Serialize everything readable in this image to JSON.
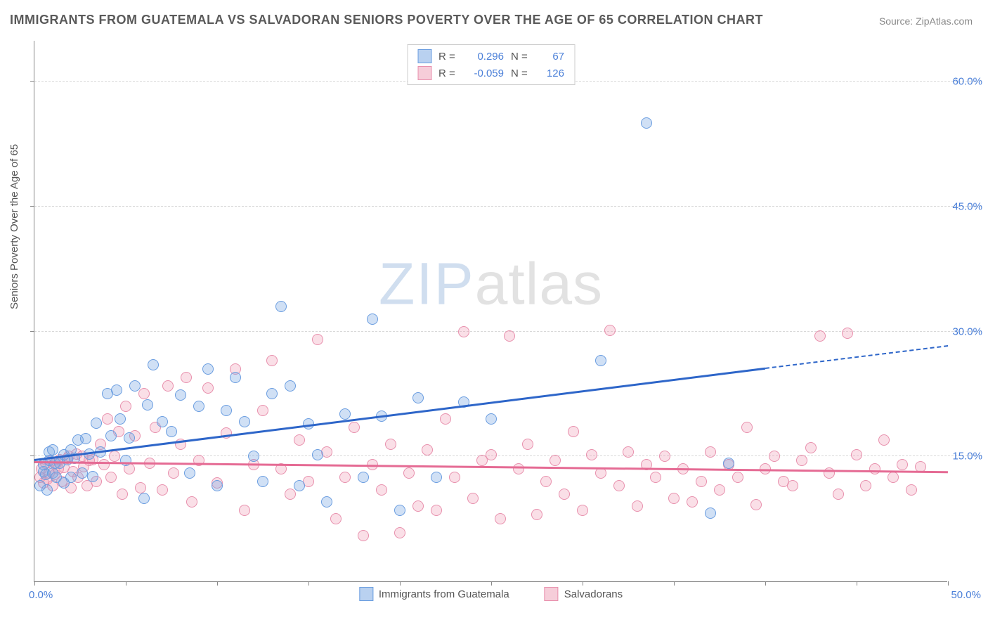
{
  "title": "IMMIGRANTS FROM GUATEMALA VS SALVADORAN SENIORS POVERTY OVER THE AGE OF 65 CORRELATION CHART",
  "source_label": "Source: ",
  "source_site": "ZipAtlas.com",
  "watermark_a": "ZIP",
  "watermark_b": "atlas",
  "chart": {
    "type": "scatter",
    "y_axis_title": "Seniors Poverty Over the Age of 65",
    "xlim": [
      0,
      50
    ],
    "ylim": [
      0,
      65
    ],
    "x_tick_labels": [
      "0.0%",
      "50.0%"
    ],
    "y_ticks": [
      15,
      30,
      45,
      60
    ],
    "y_tick_labels": [
      "15.0%",
      "30.0%",
      "45.0%",
      "60.0%"
    ],
    "x_minor_ticks": 10,
    "background_color": "#ffffff",
    "grid_color": "#d8d8d8",
    "axis_color": "#888888",
    "label_color": "#4a7fd8",
    "point_radius": 8,
    "series": [
      {
        "name": "Immigrants from Guatemala",
        "fill": "rgba(120,165,225,0.35)",
        "stroke": "#6a9de0",
        "swatch_fill": "#b9d1f0",
        "swatch_border": "#6a9de0",
        "trend_color": "#2e66c9",
        "R": "0.296",
        "N": "67",
        "trend": {
          "x1": 0,
          "y1": 14.5,
          "x2_solid": 40,
          "y2_solid": 25.5,
          "x2_dash": 50,
          "y2_dash": 28.2
        },
        "points": [
          [
            0.3,
            11.5
          ],
          [
            0.5,
            13.2
          ],
          [
            0.5,
            14
          ],
          [
            0.6,
            12.8
          ],
          [
            0.7,
            11
          ],
          [
            0.8,
            14.5
          ],
          [
            0.8,
            15.5
          ],
          [
            1,
            13
          ],
          [
            1,
            15.8
          ],
          [
            1.1,
            14.2
          ],
          [
            1.2,
            12.5
          ],
          [
            1.4,
            14.2
          ],
          [
            1.6,
            11.8
          ],
          [
            1.6,
            15.2
          ],
          [
            1.8,
            14.6
          ],
          [
            2.0,
            12.5
          ],
          [
            2.0,
            15.8
          ],
          [
            2.2,
            14.8
          ],
          [
            2.4,
            17
          ],
          [
            2.6,
            13
          ],
          [
            2.8,
            17.1
          ],
          [
            3.0,
            15.3
          ],
          [
            3.2,
            12.6
          ],
          [
            3.4,
            19
          ],
          [
            3.6,
            15.5
          ],
          [
            4,
            22.5
          ],
          [
            4.2,
            17.5
          ],
          [
            4.5,
            23
          ],
          [
            4.7,
            19.5
          ],
          [
            5,
            14.5
          ],
          [
            5.2,
            17.2
          ],
          [
            5.5,
            23.5
          ],
          [
            6,
            10
          ],
          [
            6.2,
            21.2
          ],
          [
            6.5,
            26
          ],
          [
            7,
            19.2
          ],
          [
            7.5,
            18
          ],
          [
            8,
            22.4
          ],
          [
            8.5,
            13
          ],
          [
            9,
            21
          ],
          [
            9.5,
            25.5
          ],
          [
            10,
            11.5
          ],
          [
            10.5,
            20.5
          ],
          [
            11,
            24.5
          ],
          [
            11.5,
            19.2
          ],
          [
            12,
            15
          ],
          [
            12.5,
            12
          ],
          [
            13,
            22.5
          ],
          [
            13.5,
            33
          ],
          [
            14,
            23.5
          ],
          [
            14.5,
            11.5
          ],
          [
            15,
            18.9
          ],
          [
            15.5,
            15.2
          ],
          [
            16,
            9.5
          ],
          [
            17,
            20.1
          ],
          [
            18,
            12.5
          ],
          [
            18.5,
            31.5
          ],
          [
            19,
            19.8
          ],
          [
            20,
            8.5
          ],
          [
            21,
            22
          ],
          [
            22,
            12.5
          ],
          [
            23.5,
            21.5
          ],
          [
            25,
            19.5
          ],
          [
            31,
            26.5
          ],
          [
            33.5,
            55
          ],
          [
            37,
            8.2
          ],
          [
            38,
            14.2
          ]
        ]
      },
      {
        "name": "Salvadorans",
        "fill": "rgba(240,150,175,0.3)",
        "stroke": "#e890ad",
        "swatch_fill": "#f6cdd9",
        "swatch_border": "#e890ad",
        "trend_color": "#e56b94",
        "R": "-0.059",
        "N": "126",
        "trend": {
          "x1": 0,
          "y1": 14.2,
          "x2_solid": 50,
          "y2_solid": 13.0,
          "x2_dash": 50,
          "y2_dash": 13.0
        },
        "points": [
          [
            0.3,
            12.5
          ],
          [
            0.4,
            13.5
          ],
          [
            0.5,
            11.8
          ],
          [
            0.6,
            14.2
          ],
          [
            0.7,
            12.2
          ],
          [
            0.8,
            13
          ],
          [
            0.9,
            14.4
          ],
          [
            1,
            11.5
          ],
          [
            1.1,
            12.8
          ],
          [
            1.2,
            14.2
          ],
          [
            1.3,
            13.5
          ],
          [
            1.4,
            14.6
          ],
          [
            1.5,
            12
          ],
          [
            1.6,
            13.7
          ],
          [
            1.8,
            14.8
          ],
          [
            1.9,
            15
          ],
          [
            2.0,
            11.2
          ],
          [
            2.1,
            13.2
          ],
          [
            2.3,
            15.3
          ],
          [
            2.4,
            12.5
          ],
          [
            2.6,
            15
          ],
          [
            2.7,
            13.8
          ],
          [
            2.9,
            11.5
          ],
          [
            3.0,
            14.5
          ],
          [
            3.2,
            14.6
          ],
          [
            3.4,
            12
          ],
          [
            3.6,
            16.5
          ],
          [
            3.8,
            14
          ],
          [
            4,
            19.5
          ],
          [
            4.2,
            12.5
          ],
          [
            4.4,
            15
          ],
          [
            4.6,
            18
          ],
          [
            4.8,
            10.5
          ],
          [
            5,
            21
          ],
          [
            5.2,
            13.5
          ],
          [
            5.5,
            17.5
          ],
          [
            5.8,
            11.2
          ],
          [
            6,
            22.5
          ],
          [
            6.3,
            14.2
          ],
          [
            6.6,
            18.5
          ],
          [
            7,
            11
          ],
          [
            7.3,
            23.5
          ],
          [
            7.6,
            13
          ],
          [
            8,
            16.5
          ],
          [
            8.3,
            24.5
          ],
          [
            8.6,
            9.5
          ],
          [
            9,
            14.5
          ],
          [
            9.5,
            23.2
          ],
          [
            10,
            11.8
          ],
          [
            10.5,
            17.8
          ],
          [
            11,
            25.5
          ],
          [
            11.5,
            8.5
          ],
          [
            12,
            14
          ],
          [
            12.5,
            20.5
          ],
          [
            13,
            26.5
          ],
          [
            13.5,
            13.5
          ],
          [
            14,
            10.5
          ],
          [
            14.5,
            17
          ],
          [
            15,
            12
          ],
          [
            15.5,
            29
          ],
          [
            16,
            15.5
          ],
          [
            16.5,
            7.5
          ],
          [
            17,
            12.5
          ],
          [
            17.5,
            18.5
          ],
          [
            18,
            5.5
          ],
          [
            18.5,
            14
          ],
          [
            19,
            11
          ],
          [
            19.5,
            16.5
          ],
          [
            20,
            5.8
          ],
          [
            20.5,
            13
          ],
          [
            21,
            9
          ],
          [
            21.5,
            15.8
          ],
          [
            22,
            8.5
          ],
          [
            22.5,
            19.5
          ],
          [
            23,
            12.5
          ],
          [
            23.5,
            30
          ],
          [
            24,
            10
          ],
          [
            24.5,
            14.5
          ],
          [
            25,
            15.2
          ],
          [
            25.5,
            7.5
          ],
          [
            26,
            29.5
          ],
          [
            26.5,
            13.5
          ],
          [
            27,
            16.5
          ],
          [
            27.5,
            8
          ],
          [
            28,
            12
          ],
          [
            28.5,
            14.5
          ],
          [
            29,
            10.5
          ],
          [
            29.5,
            18
          ],
          [
            30,
            8.5
          ],
          [
            30.5,
            15.2
          ],
          [
            31,
            13
          ],
          [
            31.5,
            30.1
          ],
          [
            32,
            11.5
          ],
          [
            32.5,
            15.5
          ],
          [
            33,
            9
          ],
          [
            33.5,
            14
          ],
          [
            34,
            12.5
          ],
          [
            34.5,
            15
          ],
          [
            35,
            10
          ],
          [
            35.5,
            13.5
          ],
          [
            36,
            9.5
          ],
          [
            36.5,
            12
          ],
          [
            37,
            15.5
          ],
          [
            37.5,
            11
          ],
          [
            38,
            14
          ],
          [
            38.5,
            12.5
          ],
          [
            39,
            18.5
          ],
          [
            39.5,
            9.2
          ],
          [
            40,
            13.5
          ],
          [
            40.5,
            15
          ],
          [
            41,
            12
          ],
          [
            41.5,
            11.5
          ],
          [
            42,
            14.5
          ],
          [
            42.5,
            16
          ],
          [
            43,
            29.5
          ],
          [
            43.5,
            13
          ],
          [
            44,
            10.5
          ],
          [
            44.5,
            29.8
          ],
          [
            45,
            15.2
          ],
          [
            45.5,
            11.5
          ],
          [
            46,
            13.5
          ],
          [
            46.5,
            17
          ],
          [
            47,
            12.5
          ],
          [
            47.5,
            14
          ],
          [
            48,
            11
          ],
          [
            48.5,
            13.8
          ]
        ]
      }
    ],
    "legend_bottom": [
      {
        "label": "Immigrants from Guatemala",
        "series": 0
      },
      {
        "label": "Salvadorans",
        "series": 1
      }
    ]
  }
}
